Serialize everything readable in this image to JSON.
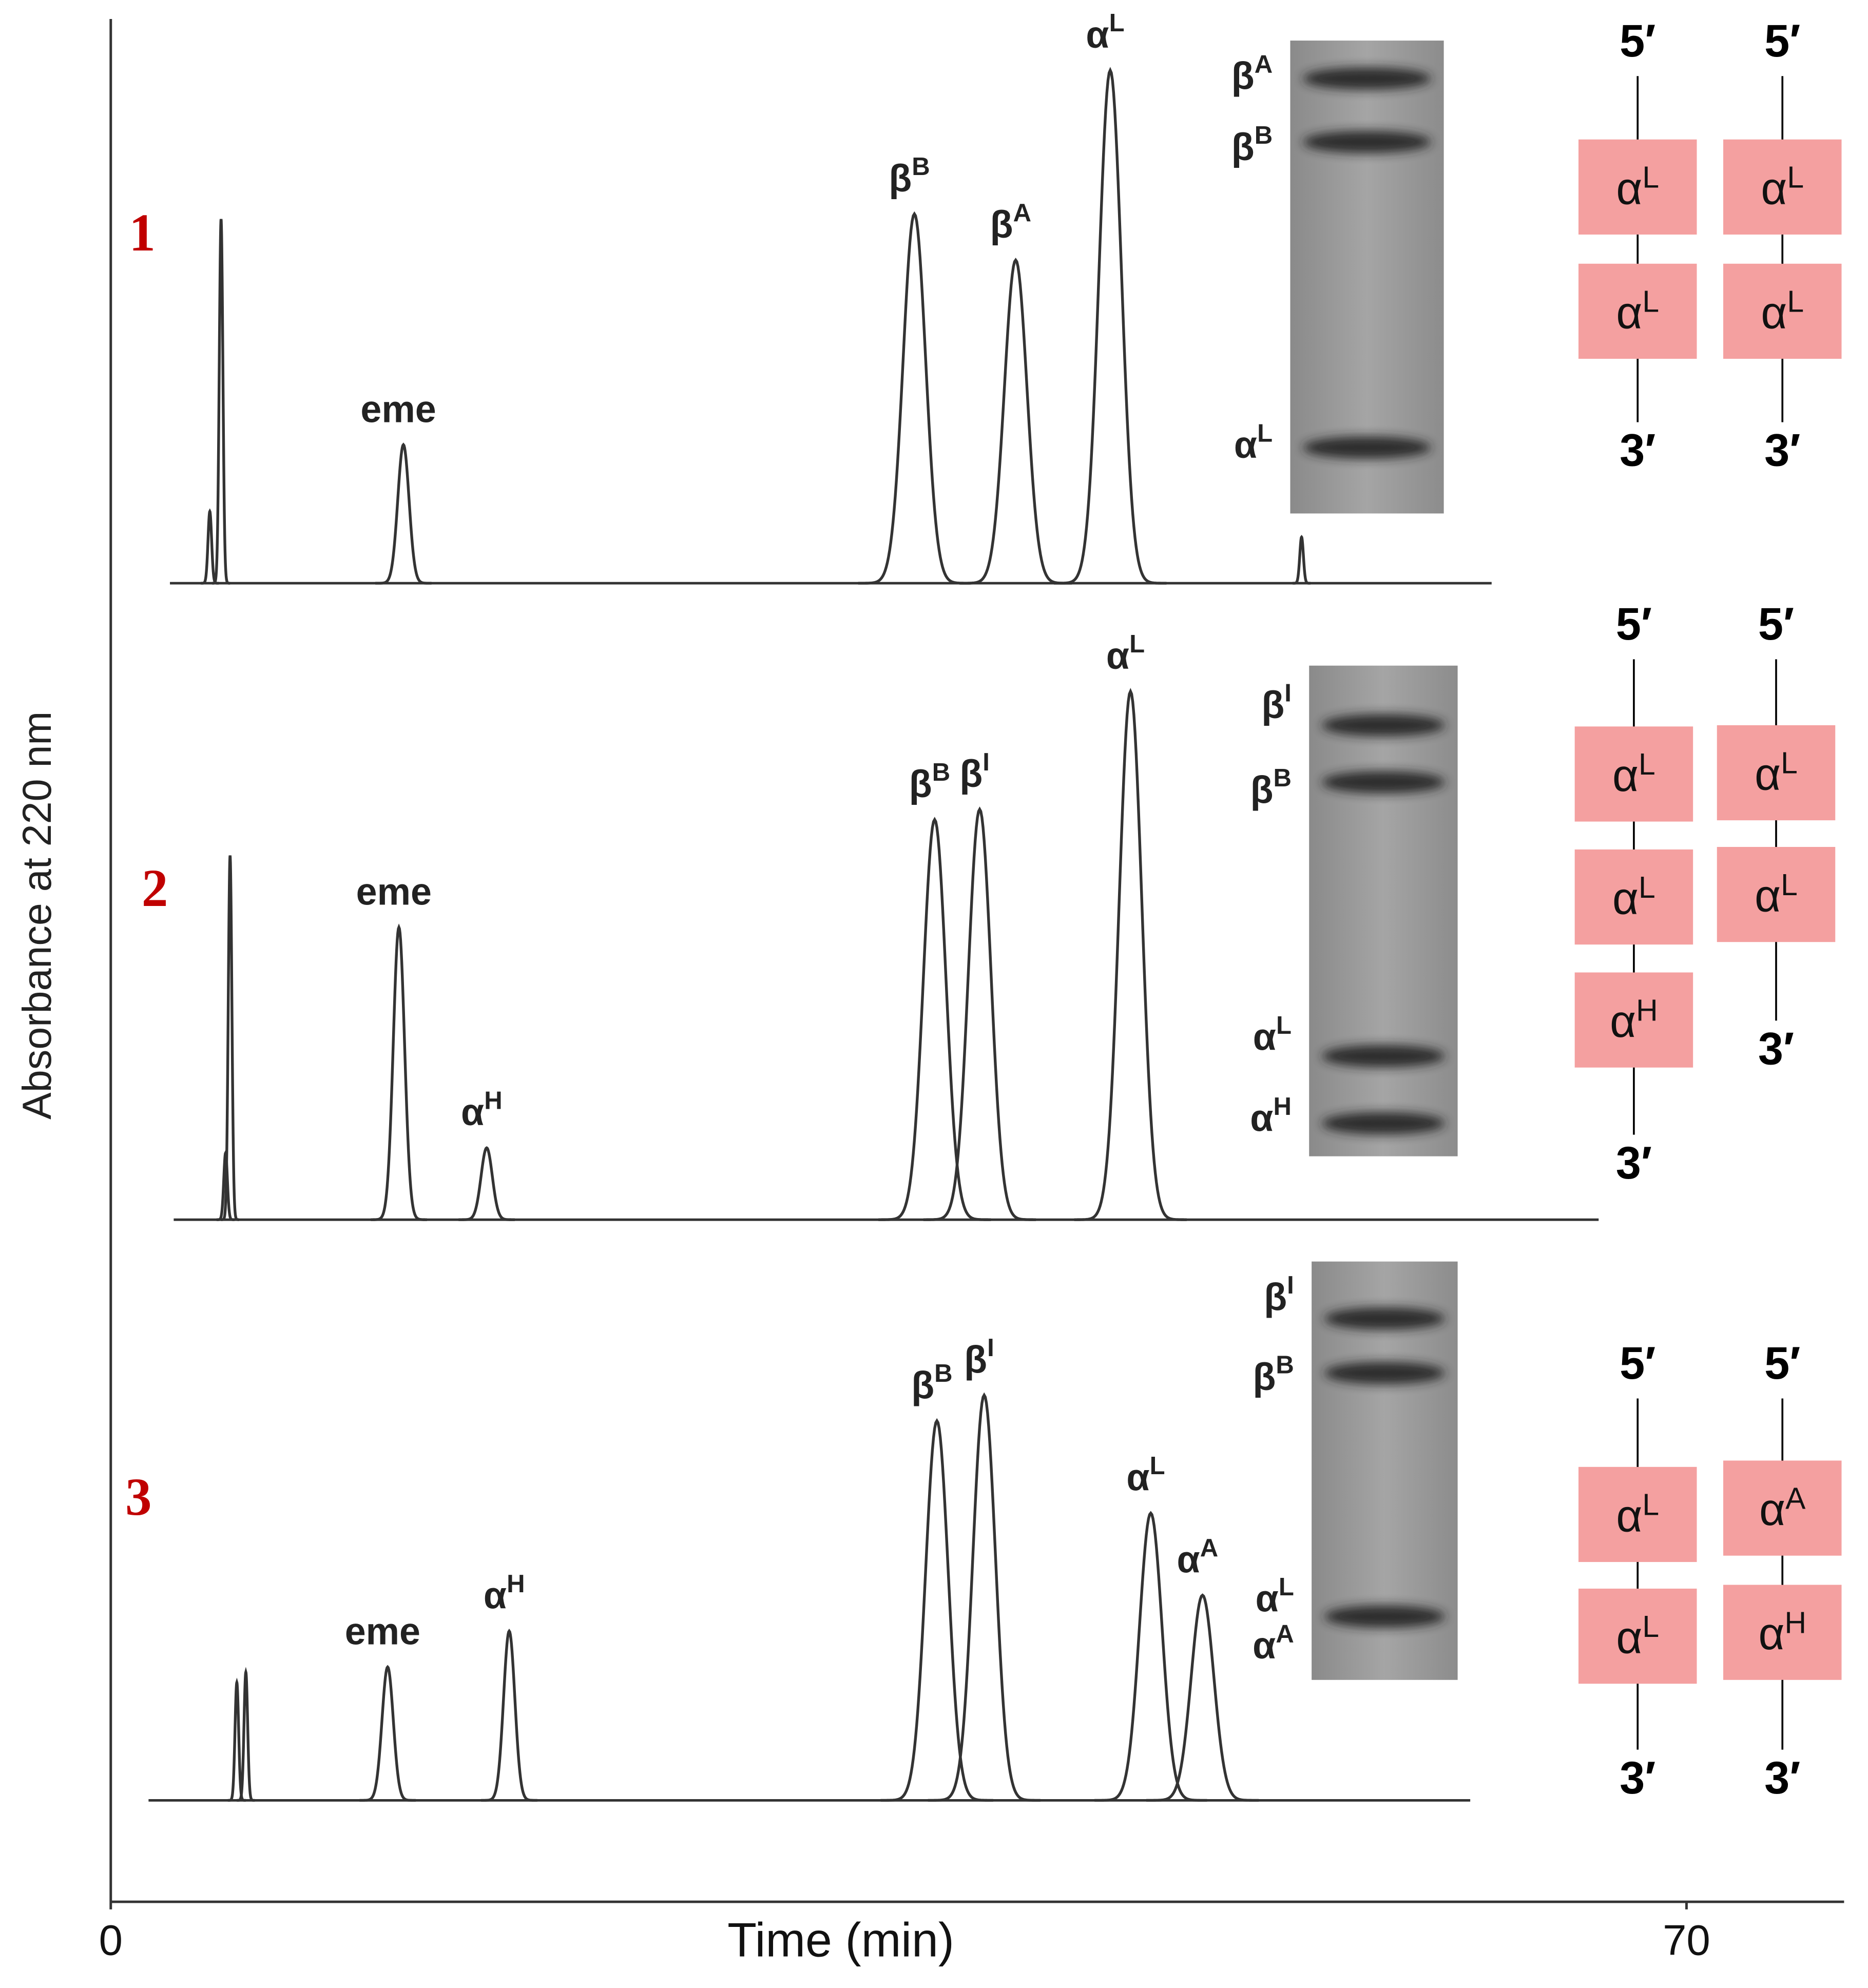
{
  "chart_data": {
    "type": "chromatogram",
    "xlabel": "Time (min)",
    "ylabel": "Absorbance at 220 nm",
    "xlim": [
      0,
      77
    ],
    "xticks": [
      0,
      70
    ],
    "ylim": [
      0,
      110
    ],
    "color": "#333333",
    "panels": [
      {
        "label": "1",
        "peaks": [
          {
            "x": 4.4,
            "height": 14
          },
          {
            "x": 4.9,
            "height": 71
          },
          {
            "label": "eme",
            "x": 13.0,
            "height": 27
          },
          {
            "label": "β",
            "sup": "B",
            "x": 35.7,
            "height": 72
          },
          {
            "label": "β",
            "sup": "A",
            "x": 40.2,
            "height": 63
          },
          {
            "label": "α",
            "sup": "L",
            "x": 44.4,
            "height": 100
          },
          {
            "x": 52.9,
            "height": 9
          }
        ],
        "gel": [
          {
            "label": "β",
            "sup": "A"
          },
          {
            "label": "β",
            "sup": "B"
          },
          {
            "label": "α",
            "sup": "L"
          }
        ],
        "strands": [
          {
            "top": "5′",
            "bottom": "3′",
            "boxes": [
              {
                "label": "α",
                "sup": "L"
              },
              {
                "label": "α",
                "sup": "L"
              }
            ]
          },
          {
            "top": "5′",
            "bottom": "3′",
            "boxes": [
              {
                "label": "α",
                "sup": "L"
              },
              {
                "label": "α",
                "sup": "L"
              }
            ]
          }
        ]
      },
      {
        "label": "2",
        "peaks": [
          {
            "x": 5.1,
            "height": 13
          },
          {
            "x": 5.3,
            "height": 71
          },
          {
            "label": "eme",
            "x": 12.8,
            "height": 57
          },
          {
            "label": "α",
            "sup": "H",
            "x": 16.7,
            "height": 14
          },
          {
            "label": "β",
            "sup": "B",
            "x": 36.6,
            "height": 78
          },
          {
            "label": "β",
            "sup": "I",
            "x": 38.6,
            "height": 80
          },
          {
            "label": "α",
            "sup": "L",
            "x": 45.3,
            "height": 103
          }
        ],
        "gel": [
          {
            "label": "β",
            "sup": "I"
          },
          {
            "label": "β",
            "sup": "B"
          },
          {
            "label": "α",
            "sup": "L"
          },
          {
            "label": "α",
            "sup": "H"
          }
        ],
        "strands": [
          {
            "top": "5′",
            "bottom": "3′",
            "boxes": [
              {
                "label": "α",
                "sup": "L"
              },
              {
                "label": "α",
                "sup": "L"
              },
              {
                "label": "α",
                "sup": "H"
              }
            ]
          },
          {
            "top": "5′",
            "bottom": "3′",
            "boxes": [
              {
                "label": "α",
                "sup": "L"
              },
              {
                "label": "α",
                "sup": "L"
              }
            ]
          }
        ]
      },
      {
        "label": "3",
        "peaks": [
          {
            "x": 5.6,
            "height": 23
          },
          {
            "x": 6.0,
            "height": 25
          },
          {
            "label": "eme",
            "x": 12.3,
            "height": 26
          },
          {
            "label": "α",
            "sup": "H",
            "x": 17.7,
            "height": 33
          },
          {
            "label": "β",
            "sup": "B",
            "x": 36.7,
            "height": 74
          },
          {
            "label": "β",
            "sup": "I",
            "x": 38.8,
            "height": 79
          },
          {
            "label": "α",
            "sup": "L",
            "x": 46.2,
            "height": 56
          },
          {
            "label": "α",
            "sup": "A",
            "x": 48.5,
            "height": 40
          }
        ],
        "gel": [
          {
            "label": "β",
            "sup": "I"
          },
          {
            "label": "β",
            "sup": "B"
          },
          {
            "label": "α",
            "sup": "L"
          },
          {
            "label": "α",
            "sup": "A"
          }
        ],
        "strands": [
          {
            "top": "5′",
            "bottom": "3′",
            "boxes": [
              {
                "label": "α",
                "sup": "L"
              },
              {
                "label": "α",
                "sup": "L"
              }
            ]
          },
          {
            "top": "5′",
            "bottom": "3′",
            "boxes": [
              {
                "label": "α",
                "sup": "A"
              },
              {
                "label": "α",
                "sup": "H"
              }
            ]
          }
        ]
      }
    ]
  }
}
